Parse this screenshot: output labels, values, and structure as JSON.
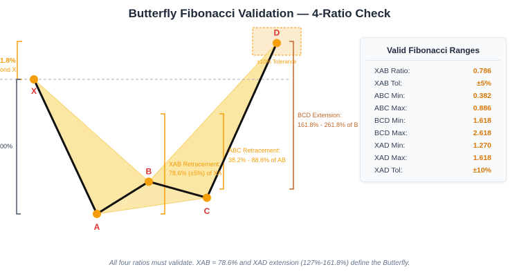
{
  "title": "Butterfly Fibonacci Validation — 4-Ratio Check",
  "footer": "All four ratios must validate. XAB = 78.6% and XAD extension (127%-161.8%) define the Butterfly.",
  "colors": {
    "fill": "#fbe6a4",
    "fill_edge": "#f5d36a",
    "line": "#111111",
    "point": "#f59e0b",
    "point_label": "#e03131",
    "orange_bracket": "#f59e0b",
    "brown_bracket": "#c2672b",
    "slate_bracket": "#475569",
    "tolerance_box": "#fdebd0"
  },
  "chart_data": {
    "type": "line",
    "title": "Butterfly Fibonacci Validation — 4-Ratio Check",
    "xlabel": "",
    "ylabel": "",
    "points": [
      {
        "name": "X",
        "x": 0,
        "y": 0.0
      },
      {
        "name": "A",
        "x": 1,
        "y": -1.0
      },
      {
        "name": "B",
        "x": 2,
        "y": -0.76
      },
      {
        "name": "C",
        "x": 3,
        "y": -0.88
      },
      {
        "name": "D",
        "x": 4,
        "y": 0.27
      }
    ],
    "bracket_labels": {
      "xab_partial_top": "1.8%",
      "xab_partial_bottom": "ond X",
      "xa_left_partial": "00%",
      "xab_retracement_line1": "XAB Retracement:",
      "xab_retracement_line2": "78.6% (±5%) of XA",
      "abc_retracement_line1": "ABC Retracement:",
      "abc_retracement_line2": "38.2% - 88.6% of AB",
      "bcd_extension_line1": "BCD Extension:",
      "bcd_extension_line2": "161.8% - 261.8% of B",
      "tolerance": "±10% Tolerance"
    }
  },
  "panel": {
    "title": "Valid Fibonacci Ranges",
    "rows": [
      {
        "label": "XAB Ratio:",
        "value": "0.786"
      },
      {
        "label": "XAB Tol:",
        "value": "±5%"
      },
      {
        "label": "ABC Min:",
        "value": "0.382"
      },
      {
        "label": "ABC Max:",
        "value": "0.886"
      },
      {
        "label": "BCD Min:",
        "value": "1.618"
      },
      {
        "label": "BCD Max:",
        "value": "2.618"
      },
      {
        "label": "XAD Min:",
        "value": "1.270"
      },
      {
        "label": "XAD Max:",
        "value": "1.618"
      },
      {
        "label": "XAD Tol:",
        "value": "±10%"
      }
    ]
  }
}
